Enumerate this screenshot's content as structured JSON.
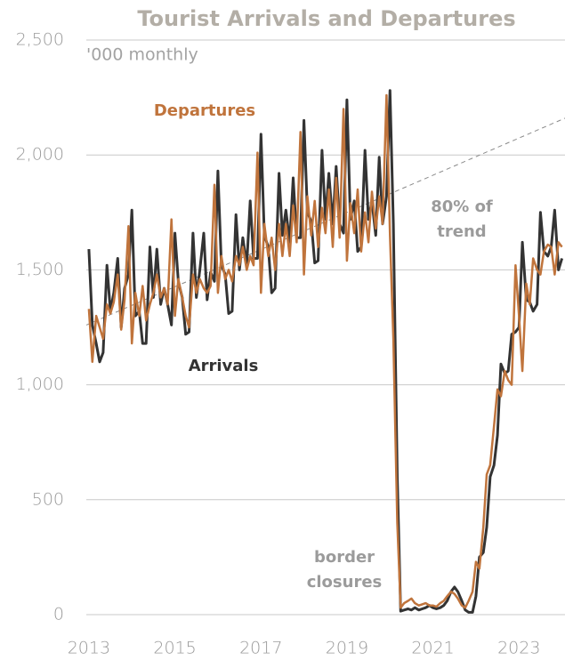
{
  "chart_data": {
    "type": "line",
    "title": "Tourist Arrivals and Departures",
    "subtitle": "'000 monthly",
    "x": [
      2013,
      2013.08,
      2013.17,
      2013.25,
      2013.33,
      2013.42,
      2013.5,
      2013.58,
      2013.67,
      2013.75,
      2013.83,
      2013.92,
      2014,
      2014.08,
      2014.17,
      2014.25,
      2014.33,
      2014.42,
      2014.5,
      2014.58,
      2014.67,
      2014.75,
      2014.83,
      2014.92,
      2015,
      2015.08,
      2015.17,
      2015.25,
      2015.33,
      2015.42,
      2015.5,
      2015.58,
      2015.67,
      2015.75,
      2015.83,
      2015.92,
      2016,
      2016.08,
      2016.17,
      2016.25,
      2016.33,
      2016.42,
      2016.5,
      2016.58,
      2016.67,
      2016.75,
      2016.83,
      2016.92,
      2017,
      2017.08,
      2017.17,
      2017.25,
      2017.33,
      2017.42,
      2017.5,
      2017.58,
      2017.67,
      2017.75,
      2017.83,
      2017.92,
      2018,
      2018.08,
      2018.17,
      2018.25,
      2018.33,
      2018.42,
      2018.5,
      2018.58,
      2018.67,
      2018.75,
      2018.83,
      2018.92,
      2019,
      2019.08,
      2019.17,
      2019.25,
      2019.33,
      2019.42,
      2019.5,
      2019.58,
      2019.67,
      2019.75,
      2019.83,
      2019.92,
      2020,
      2020.08,
      2020.17,
      2020.25,
      2020.33,
      2020.42,
      2020.5,
      2020.58,
      2020.67,
      2020.75,
      2020.83,
      2020.92,
      2021,
      2021.08,
      2021.17,
      2021.25,
      2021.33,
      2021.42,
      2021.5,
      2021.58,
      2021.67,
      2021.75,
      2021.83,
      2021.92,
      2022,
      2022.08,
      2022.17,
      2022.25,
      2022.33,
      2022.42,
      2022.5,
      2022.58,
      2022.67,
      2022.75,
      2022.83,
      2022.92,
      2023,
      2023.08,
      2023.17,
      2023.25,
      2023.33,
      2023.42,
      2023.5,
      2023.58,
      2023.67,
      2023.75,
      2023.83,
      2023.92,
      2024
    ],
    "series": [
      {
        "name": "Departures",
        "color": "#c0743c",
        "values": [
          1330,
          1100,
          1300,
          1250,
          1200,
          1350,
          1310,
          1360,
          1480,
          1240,
          1370,
          1690,
          1180,
          1400,
          1300,
          1430,
          1280,
          1350,
          1400,
          1480,
          1380,
          1420,
          1350,
          1720,
          1300,
          1460,
          1380,
          1300,
          1250,
          1480,
          1400,
          1460,
          1420,
          1400,
          1430,
          1870,
          1400,
          1560,
          1460,
          1500,
          1450,
          1560,
          1520,
          1600,
          1500,
          1560,
          1520,
          2010,
          1400,
          1700,
          1560,
          1640,
          1500,
          1700,
          1560,
          1700,
          1560,
          1780,
          1620,
          2100,
          1480,
          1820,
          1650,
          1800,
          1600,
          1770,
          1660,
          1850,
          1600,
          1900,
          1640,
          2200,
          1540,
          1790,
          1660,
          1850,
          1580,
          1750,
          1620,
          1840,
          1680,
          1820,
          1700,
          2260,
          1650,
          1200,
          400,
          30,
          50,
          60,
          70,
          50,
          40,
          45,
          50,
          40,
          40,
          35,
          50,
          60,
          80,
          100,
          90,
          70,
          40,
          30,
          60,
          100,
          230,
          200,
          380,
          610,
          650,
          820,
          980,
          950,
          1060,
          1020,
          1000,
          1520,
          1300,
          1060,
          1440,
          1350,
          1550,
          1500,
          1480,
          1580,
          1610,
          1600,
          1480,
          1620,
          1600
        ]
      },
      {
        "name": "Arrivals",
        "color": "#333333",
        "values": [
          1590,
          1260,
          1180,
          1100,
          1140,
          1520,
          1320,
          1400,
          1550,
          1250,
          1420,
          1480,
          1760,
          1300,
          1320,
          1180,
          1180,
          1600,
          1380,
          1590,
          1350,
          1420,
          1350,
          1260,
          1660,
          1450,
          1380,
          1220,
          1230,
          1660,
          1380,
          1500,
          1660,
          1370,
          1490,
          1450,
          1930,
          1520,
          1480,
          1310,
          1320,
          1740,
          1500,
          1640,
          1520,
          1800,
          1550,
          1550,
          2090,
          1650,
          1600,
          1400,
          1420,
          1920,
          1650,
          1760,
          1620,
          1900,
          1640,
          1640,
          2150,
          1750,
          1710,
          1530,
          1540,
          2020,
          1720,
          1920,
          1700,
          1950,
          1700,
          1660,
          2240,
          1720,
          1800,
          1580,
          1600,
          2020,
          1720,
          1800,
          1650,
          1990,
          1700,
          1820,
          2280,
          1700,
          600,
          15,
          20,
          25,
          20,
          30,
          20,
          25,
          30,
          40,
          30,
          25,
          30,
          40,
          60,
          100,
          120,
          100,
          60,
          20,
          10,
          10,
          80,
          250,
          270,
          380,
          600,
          650,
          780,
          1090,
          1050,
          1060,
          1220,
          1230,
          1250,
          1620,
          1370,
          1360,
          1320,
          1350,
          1750,
          1580,
          1560,
          1600,
          1760,
          1500,
          1550
        ]
      }
    ],
    "trend": {
      "color": "#8a8a8a",
      "x": [
        2012.94,
        2024.07
      ],
      "values": [
        1260,
        2160
      ]
    },
    "annotations": [
      [
        "80% of",
        "trend"
      ],
      [
        "border",
        "closures"
      ]
    ],
    "xlim": [
      2012.94,
      2024.07
    ],
    "xticks": [
      2013,
      2015,
      2017,
      2019,
      2021,
      2023
    ],
    "ylim": [
      0,
      2500
    ],
    "yticks": [
      0,
      500,
      {
        "value": 1000,
        "label": "1,000"
      },
      {
        "value": 1500,
        "label": "1,500"
      },
      {
        "value": 2000,
        "label": "2,000"
      },
      {
        "value": 2500,
        "label": "2,500"
      }
    ],
    "grid": true
  }
}
